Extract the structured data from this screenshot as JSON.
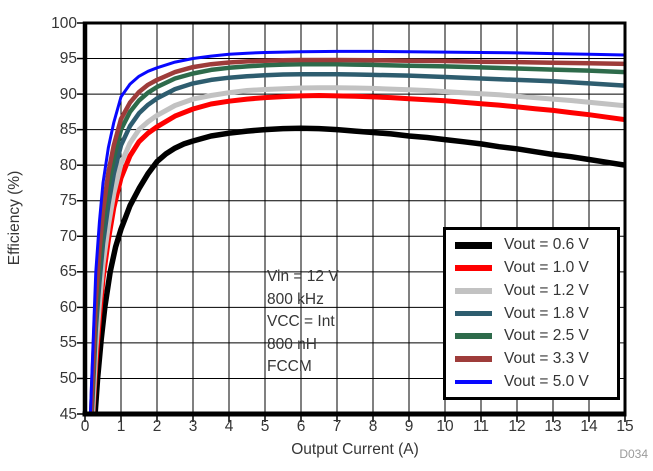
{
  "watermark": "D034",
  "annotation": {
    "lines": [
      "Vin = 12 V",
      "800 kHz",
      "VCC = Int",
      "800 nH",
      "FCCM"
    ]
  },
  "chart_data": {
    "type": "line",
    "title": "",
    "xlabel": "Output Current (A)",
    "ylabel": "Efficiency (%)",
    "xlim": [
      0,
      15
    ],
    "ylim": [
      45,
      100
    ],
    "xticks": [
      0,
      1,
      2,
      3,
      4,
      5,
      6,
      7,
      8,
      9,
      10,
      11,
      12,
      13,
      14,
      15
    ],
    "yticks": [
      45,
      50,
      55,
      60,
      65,
      70,
      75,
      80,
      85,
      90,
      95,
      100
    ],
    "grid": true,
    "grid_color": "#000000",
    "axis_color": "#000000",
    "legend_position": "lower right",
    "series": [
      {
        "name": "Vout = 0.6 V",
        "color": "#000000",
        "width": 5.5,
        "points": [
          [
            0.28,
            45
          ],
          [
            0.35,
            50
          ],
          [
            0.45,
            55.5
          ],
          [
            0.55,
            60
          ],
          [
            0.7,
            65
          ],
          [
            0.85,
            68.5
          ],
          [
            1,
            71
          ],
          [
            1.25,
            74.3
          ],
          [
            1.5,
            76.7
          ],
          [
            1.75,
            78.8
          ],
          [
            2,
            80.5
          ],
          [
            2.25,
            81.6
          ],
          [
            2.5,
            82.4
          ],
          [
            2.75,
            83
          ],
          [
            3,
            83.4
          ],
          [
            3.5,
            84.1
          ],
          [
            4,
            84.5
          ],
          [
            4.5,
            84.8
          ],
          [
            5,
            85
          ],
          [
            5.5,
            85.15
          ],
          [
            6,
            85.2
          ],
          [
            6.5,
            85.15
          ],
          [
            7,
            85
          ],
          [
            7.5,
            84.8
          ],
          [
            8,
            84.6
          ],
          [
            8.5,
            84.4
          ],
          [
            9,
            84.1
          ],
          [
            9.5,
            83.9
          ],
          [
            10,
            83.6
          ],
          [
            10.5,
            83.3
          ],
          [
            11,
            83
          ],
          [
            11.5,
            82.6
          ],
          [
            12,
            82.3
          ],
          [
            12.5,
            81.9
          ],
          [
            13,
            81.5
          ],
          [
            13.5,
            81.2
          ],
          [
            14,
            80.8
          ],
          [
            14.5,
            80.4
          ],
          [
            15,
            80
          ]
        ]
      },
      {
        "name": "Vout = 1.0 V",
        "color": "#fe0000",
        "width": 5,
        "points": [
          [
            0.22,
            45
          ],
          [
            0.3,
            52
          ],
          [
            0.4,
            58.5
          ],
          [
            0.5,
            64
          ],
          [
            0.65,
            69.5
          ],
          [
            0.8,
            74
          ],
          [
            1,
            78.2
          ],
          [
            1.25,
            81.3
          ],
          [
            1.5,
            83.3
          ],
          [
            1.75,
            84.5
          ],
          [
            2,
            85.4
          ],
          [
            2.5,
            86.9
          ],
          [
            3,
            87.9
          ],
          [
            3.5,
            88.6
          ],
          [
            4,
            89
          ],
          [
            4.5,
            89.3
          ],
          [
            5,
            89.5
          ],
          [
            5.5,
            89.65
          ],
          [
            6,
            89.75
          ],
          [
            6.5,
            89.8
          ],
          [
            7,
            89.75
          ],
          [
            7.5,
            89.7
          ],
          [
            8,
            89.6
          ],
          [
            8.5,
            89.5
          ],
          [
            9,
            89.35
          ],
          [
            9.5,
            89.2
          ],
          [
            10,
            89.05
          ],
          [
            10.5,
            88.85
          ],
          [
            11,
            88.65
          ],
          [
            11.5,
            88.45
          ],
          [
            12,
            88.2
          ],
          [
            12.5,
            87.95
          ],
          [
            13,
            87.7
          ],
          [
            13.5,
            87.4
          ],
          [
            14,
            87.1
          ],
          [
            14.5,
            86.75
          ],
          [
            15,
            86.4
          ]
        ]
      },
      {
        "name": "Vout = 1.2 V",
        "color": "#c2c2c2",
        "width": 5,
        "points": [
          [
            0.21,
            45
          ],
          [
            0.3,
            54
          ],
          [
            0.4,
            60.5
          ],
          [
            0.5,
            66
          ],
          [
            0.65,
            71.5
          ],
          [
            0.8,
            76
          ],
          [
            1,
            80.2
          ],
          [
            1.25,
            83.1
          ],
          [
            1.5,
            85
          ],
          [
            1.75,
            86.1
          ],
          [
            2,
            87
          ],
          [
            2.5,
            88.4
          ],
          [
            3,
            89.3
          ],
          [
            3.5,
            89.8
          ],
          [
            4,
            90.2
          ],
          [
            4.5,
            90.5
          ],
          [
            5,
            90.65
          ],
          [
            5.5,
            90.75
          ],
          [
            6,
            90.85
          ],
          [
            6.5,
            90.9
          ],
          [
            7,
            90.9
          ],
          [
            7.5,
            90.85
          ],
          [
            8,
            90.8
          ],
          [
            8.5,
            90.7
          ],
          [
            9,
            90.6
          ],
          [
            9.5,
            90.5
          ],
          [
            10,
            90.35
          ],
          [
            10.5,
            90.2
          ],
          [
            11,
            90.05
          ],
          [
            11.5,
            89.9
          ],
          [
            12,
            89.7
          ],
          [
            12.5,
            89.5
          ],
          [
            13,
            89.3
          ],
          [
            13.5,
            89.1
          ],
          [
            14,
            88.85
          ],
          [
            14.5,
            88.6
          ],
          [
            15,
            88.35
          ]
        ]
      },
      {
        "name": "Vout = 1.8 V",
        "color": "#2e5d6f",
        "width": 4.5,
        "points": [
          [
            0.19,
            45
          ],
          [
            0.3,
            57
          ],
          [
            0.4,
            63.5
          ],
          [
            0.5,
            69
          ],
          [
            0.65,
            74.5
          ],
          [
            0.8,
            78.8
          ],
          [
            1,
            82.8
          ],
          [
            1.25,
            85.5
          ],
          [
            1.5,
            87.3
          ],
          [
            1.75,
            88.5
          ],
          [
            2,
            89.4
          ],
          [
            2.5,
            90.7
          ],
          [
            3,
            91.5
          ],
          [
            3.5,
            92
          ],
          [
            4,
            92.3
          ],
          [
            4.5,
            92.5
          ],
          [
            5,
            92.65
          ],
          [
            5.5,
            92.75
          ],
          [
            6,
            92.8
          ],
          [
            6.5,
            92.8
          ],
          [
            7,
            92.8
          ],
          [
            7.5,
            92.75
          ],
          [
            8,
            92.7
          ],
          [
            9,
            92.6
          ],
          [
            10,
            92.4
          ],
          [
            11,
            92.2
          ],
          [
            12,
            92
          ],
          [
            13,
            91.8
          ],
          [
            14,
            91.5
          ],
          [
            15,
            91.2
          ]
        ]
      },
      {
        "name": "Vout = 2.5 V",
        "color": "#2e6b4b",
        "width": 4.5,
        "points": [
          [
            0.18,
            45
          ],
          [
            0.3,
            59
          ],
          [
            0.4,
            66
          ],
          [
            0.5,
            71.5
          ],
          [
            0.65,
            77
          ],
          [
            0.8,
            81
          ],
          [
            1,
            85
          ],
          [
            1.25,
            87.5
          ],
          [
            1.5,
            89.1
          ],
          [
            1.75,
            90.2
          ],
          [
            2,
            91
          ],
          [
            2.5,
            92.2
          ],
          [
            3,
            92.9
          ],
          [
            3.5,
            93.4
          ],
          [
            4,
            93.7
          ],
          [
            4.5,
            93.9
          ],
          [
            5,
            94.05
          ],
          [
            5.5,
            94.15
          ],
          [
            6,
            94.2
          ],
          [
            6.5,
            94.2
          ],
          [
            7,
            94.2
          ],
          [
            7.5,
            94.15
          ],
          [
            8,
            94.1
          ],
          [
            9,
            94
          ],
          [
            10,
            93.9
          ],
          [
            11,
            93.75
          ],
          [
            12,
            93.6
          ],
          [
            13,
            93.45
          ],
          [
            14,
            93.3
          ],
          [
            15,
            93.1
          ]
        ]
      },
      {
        "name": "Vout = 3.3 V",
        "color": "#9e3c3a",
        "width": 4.5,
        "points": [
          [
            0.17,
            45
          ],
          [
            0.3,
            61
          ],
          [
            0.4,
            68
          ],
          [
            0.5,
            73.5
          ],
          [
            0.65,
            79
          ],
          [
            0.8,
            82.8
          ],
          [
            1,
            86.5
          ],
          [
            1.25,
            88.8
          ],
          [
            1.5,
            90.3
          ],
          [
            1.75,
            91.3
          ],
          [
            2,
            92
          ],
          [
            2.5,
            93.1
          ],
          [
            3,
            93.8
          ],
          [
            3.5,
            94.2
          ],
          [
            4,
            94.45
          ],
          [
            4.5,
            94.6
          ],
          [
            5,
            94.7
          ],
          [
            5.5,
            94.75
          ],
          [
            6,
            94.8
          ],
          [
            7,
            94.8
          ],
          [
            8,
            94.75
          ],
          [
            9,
            94.7
          ],
          [
            10,
            94.65
          ],
          [
            11,
            94.55
          ],
          [
            12,
            94.5
          ],
          [
            13,
            94.4
          ],
          [
            14,
            94.35
          ],
          [
            15,
            94.25
          ]
        ]
      },
      {
        "name": "Vout = 5.0 V",
        "color": "#0808ff",
        "width": 3,
        "points": [
          [
            0.15,
            45
          ],
          [
            0.3,
            65
          ],
          [
            0.4,
            72
          ],
          [
            0.5,
            77.5
          ],
          [
            0.65,
            82.5
          ],
          [
            0.8,
            86
          ],
          [
            1,
            89.6
          ],
          [
            1.25,
            91.4
          ],
          [
            1.5,
            92.5
          ],
          [
            1.75,
            93.2
          ],
          [
            2,
            93.7
          ],
          [
            2.5,
            94.5
          ],
          [
            3,
            95
          ],
          [
            3.5,
            95.35
          ],
          [
            4,
            95.6
          ],
          [
            4.5,
            95.75
          ],
          [
            5,
            95.85
          ],
          [
            5.5,
            95.9
          ],
          [
            6,
            95.95
          ],
          [
            7,
            96
          ],
          [
            8,
            96
          ],
          [
            9,
            95.95
          ],
          [
            10,
            95.9
          ],
          [
            11,
            95.85
          ],
          [
            12,
            95.8
          ],
          [
            13,
            95.7
          ],
          [
            14,
            95.6
          ],
          [
            15,
            95.5
          ]
        ]
      }
    ]
  }
}
